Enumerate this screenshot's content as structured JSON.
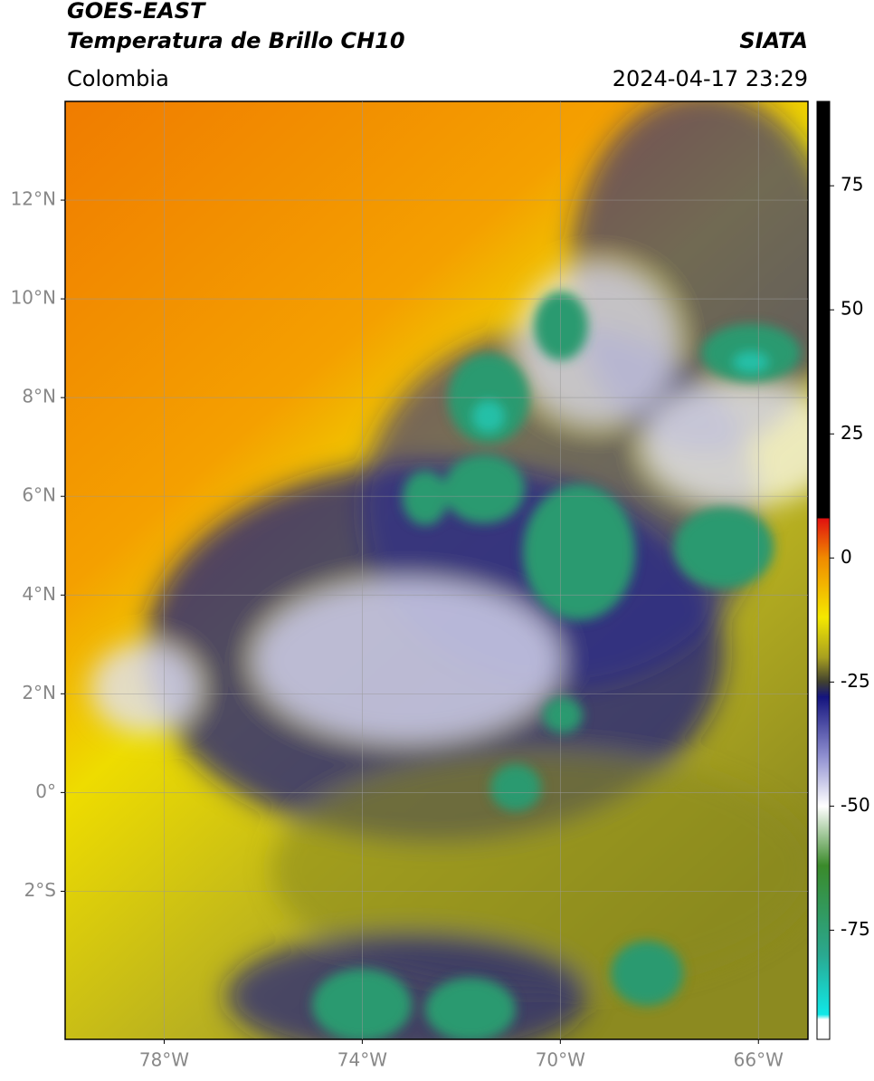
{
  "header": {
    "title_line1": "GOES-EAST",
    "title_line2": "Temperatura de Brillo CH10",
    "source": "SIATA",
    "region": "Colombia",
    "timestamp": "2024-04-17 23:29"
  },
  "map": {
    "xlim": [
      -80,
      -65
    ],
    "ylim": [
      -5,
      14
    ],
    "xticks": [
      {
        "value": -78,
        "label": "78°W"
      },
      {
        "value": -74,
        "label": "74°W"
      },
      {
        "value": -70,
        "label": "70°W"
      },
      {
        "value": -66,
        "label": "66°W"
      }
    ],
    "yticks": [
      {
        "value": 12,
        "label": "12°N"
      },
      {
        "value": 10,
        "label": "10°N"
      },
      {
        "value": 8,
        "label": "8°N"
      },
      {
        "value": 6,
        "label": "6°N"
      },
      {
        "value": 4,
        "label": "4°N"
      },
      {
        "value": 2,
        "label": "2°N"
      },
      {
        "value": 0,
        "label": "0°"
      },
      {
        "value": -2,
        "label": "2°S"
      }
    ],
    "grid": true
  },
  "colorbar": {
    "lim": [
      -97,
      92
    ],
    "ticks": [
      75,
      50,
      25,
      0,
      -25,
      -50,
      -75
    ],
    "stops": [
      {
        "value": 92,
        "color": "#000000"
      },
      {
        "value": 8,
        "color": "#000000"
      },
      {
        "value": 8,
        "color": "#e01010"
      },
      {
        "value": 0,
        "color": "#f08a00"
      },
      {
        "value": -12,
        "color": "#f4e800"
      },
      {
        "value": -20,
        "color": "#a8a020"
      },
      {
        "value": -25,
        "color": "#404030"
      },
      {
        "value": -28,
        "color": "#14147e"
      },
      {
        "value": -40,
        "color": "#9090d0"
      },
      {
        "value": -50,
        "color": "#ffffff"
      },
      {
        "value": -62,
        "color": "#3a8a2a"
      },
      {
        "value": -80,
        "color": "#2aa890"
      },
      {
        "value": -92,
        "color": "#10e8e8"
      },
      {
        "value": -93,
        "color": "#ffffff"
      },
      {
        "value": -97,
        "color": "#ffffff"
      }
    ]
  }
}
